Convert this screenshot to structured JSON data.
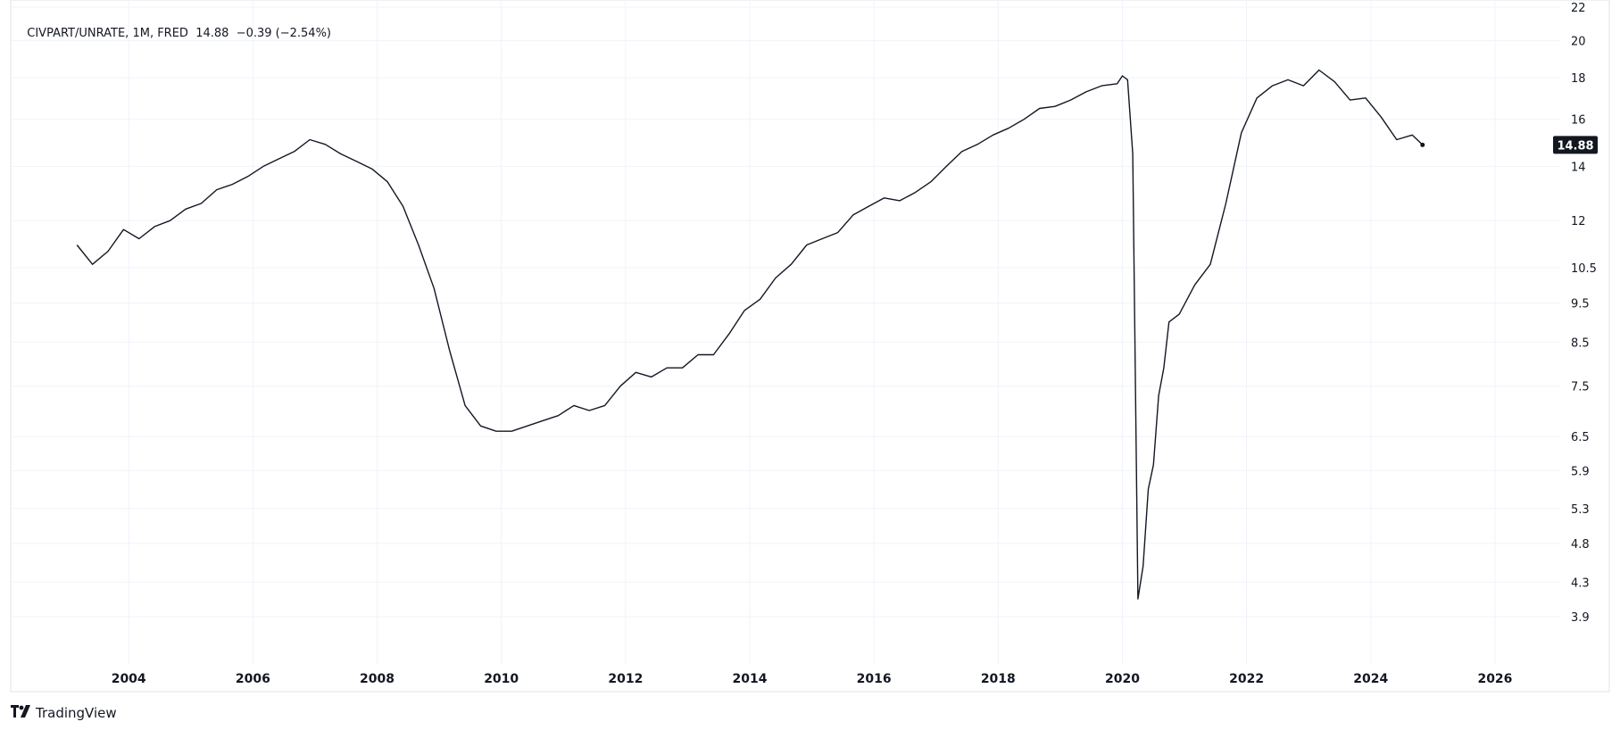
{
  "legend": {
    "symbol": "CIVPART/UNRATE",
    "interval": "1M",
    "source": "FRED",
    "last": "14.88",
    "change": "−0.39",
    "change_pct": "(−2.54%)"
  },
  "brand": {
    "logo_icon": "tradingview-logo-icon",
    "name": "TradingView"
  },
  "price_tag": {
    "value": "14.88"
  },
  "colors": {
    "line": "#131722",
    "grid": "#f0f3fa",
    "border": "#e0e3eb",
    "tag_bg": "#131722"
  },
  "chart_data": {
    "type": "line",
    "scale": "log",
    "ylim": [
      3.4,
      22
    ],
    "y_ticks": [
      3.9,
      4.3,
      4.8,
      5.3,
      5.9,
      6.5,
      7.5,
      8.5,
      9.5,
      10.5,
      12,
      14,
      16,
      18,
      20,
      22
    ],
    "y_tick_labels": [
      "3.9",
      "4.3",
      "4.8",
      "5.3",
      "5.9",
      "6.5",
      "7.5",
      "8.5",
      "9.5",
      "10.5",
      "12",
      "14",
      "16",
      "18",
      "20",
      "22"
    ],
    "x_ticks": [
      2004,
      2006,
      2008,
      2010,
      2012,
      2014,
      2016,
      2018,
      2020,
      2022,
      2024,
      2026
    ],
    "x_tick_labels": [
      "2004",
      "2006",
      "2008",
      "2010",
      "2012",
      "2014",
      "2016",
      "2018",
      "2020",
      "2022",
      "2024",
      "2026"
    ],
    "grid": true,
    "series": [
      {
        "points": [
          [
            "2003-03",
            11.2
          ],
          [
            "2003-06",
            10.6
          ],
          [
            "2003-09",
            11.0
          ],
          [
            "2003-12",
            11.7
          ],
          [
            "2004-03",
            11.4
          ],
          [
            "2004-06",
            11.8
          ],
          [
            "2004-09",
            12.0
          ],
          [
            "2004-12",
            12.4
          ],
          [
            "2005-03",
            12.6
          ],
          [
            "2005-06",
            13.1
          ],
          [
            "2005-09",
            13.3
          ],
          [
            "2005-12",
            13.6
          ],
          [
            "2006-03",
            14.0
          ],
          [
            "2006-06",
            14.3
          ],
          [
            "2006-09",
            14.6
          ],
          [
            "2006-12",
            15.1
          ],
          [
            "2007-03",
            14.9
          ],
          [
            "2007-06",
            14.5
          ],
          [
            "2007-09",
            14.2
          ],
          [
            "2007-12",
            13.9
          ],
          [
            "2008-03",
            13.4
          ],
          [
            "2008-06",
            12.5
          ],
          [
            "2008-09",
            11.2
          ],
          [
            "2008-12",
            9.9
          ],
          [
            "2009-03",
            8.3
          ],
          [
            "2009-06",
            7.1
          ],
          [
            "2009-09",
            6.7
          ],
          [
            "2009-12",
            6.6
          ],
          [
            "2010-03",
            6.6
          ],
          [
            "2010-06",
            6.7
          ],
          [
            "2010-09",
            6.8
          ],
          [
            "2010-12",
            6.9
          ],
          [
            "2011-03",
            7.1
          ],
          [
            "2011-06",
            7.0
          ],
          [
            "2011-09",
            7.1
          ],
          [
            "2011-12",
            7.5
          ],
          [
            "2012-03",
            7.8
          ],
          [
            "2012-06",
            7.7
          ],
          [
            "2012-09",
            7.9
          ],
          [
            "2012-12",
            7.9
          ],
          [
            "2013-03",
            8.2
          ],
          [
            "2013-06",
            8.2
          ],
          [
            "2013-09",
            8.7
          ],
          [
            "2013-12",
            9.3
          ],
          [
            "2014-03",
            9.6
          ],
          [
            "2014-06",
            10.2
          ],
          [
            "2014-09",
            10.6
          ],
          [
            "2014-12",
            11.2
          ],
          [
            "2015-03",
            11.4
          ],
          [
            "2015-06",
            11.6
          ],
          [
            "2015-09",
            12.2
          ],
          [
            "2015-12",
            12.5
          ],
          [
            "2016-03",
            12.8
          ],
          [
            "2016-06",
            12.7
          ],
          [
            "2016-09",
            13.0
          ],
          [
            "2016-12",
            13.4
          ],
          [
            "2017-03",
            14.0
          ],
          [
            "2017-06",
            14.6
          ],
          [
            "2017-09",
            14.9
          ],
          [
            "2017-12",
            15.3
          ],
          [
            "2018-03",
            15.6
          ],
          [
            "2018-06",
            16.0
          ],
          [
            "2018-09",
            16.5
          ],
          [
            "2018-12",
            16.6
          ],
          [
            "2019-03",
            16.9
          ],
          [
            "2019-06",
            17.3
          ],
          [
            "2019-09",
            17.6
          ],
          [
            "2019-12",
            17.7
          ],
          [
            "2020-01",
            18.1
          ],
          [
            "2020-02",
            17.9
          ],
          [
            "2020-03",
            14.5
          ],
          [
            "2020-04",
            4.1
          ],
          [
            "2020-05",
            4.5
          ],
          [
            "2020-06",
            5.6
          ],
          [
            "2020-07",
            6.0
          ],
          [
            "2020-08",
            7.3
          ],
          [
            "2020-09",
            7.9
          ],
          [
            "2020-10",
            9.0
          ],
          [
            "2020-12",
            9.2
          ],
          [
            "2021-03",
            10.0
          ],
          [
            "2021-06",
            10.6
          ],
          [
            "2021-09",
            12.6
          ],
          [
            "2021-12",
            15.4
          ],
          [
            "2022-03",
            17.0
          ],
          [
            "2022-06",
            17.6
          ],
          [
            "2022-09",
            17.9
          ],
          [
            "2022-12",
            17.6
          ],
          [
            "2023-03",
            18.4
          ],
          [
            "2023-06",
            17.8
          ],
          [
            "2023-09",
            16.9
          ],
          [
            "2023-12",
            17.0
          ],
          [
            "2024-03",
            16.1
          ],
          [
            "2024-06",
            15.1
          ],
          [
            "2024-09",
            15.3
          ],
          [
            "2024-11",
            14.88
          ]
        ]
      }
    ]
  }
}
